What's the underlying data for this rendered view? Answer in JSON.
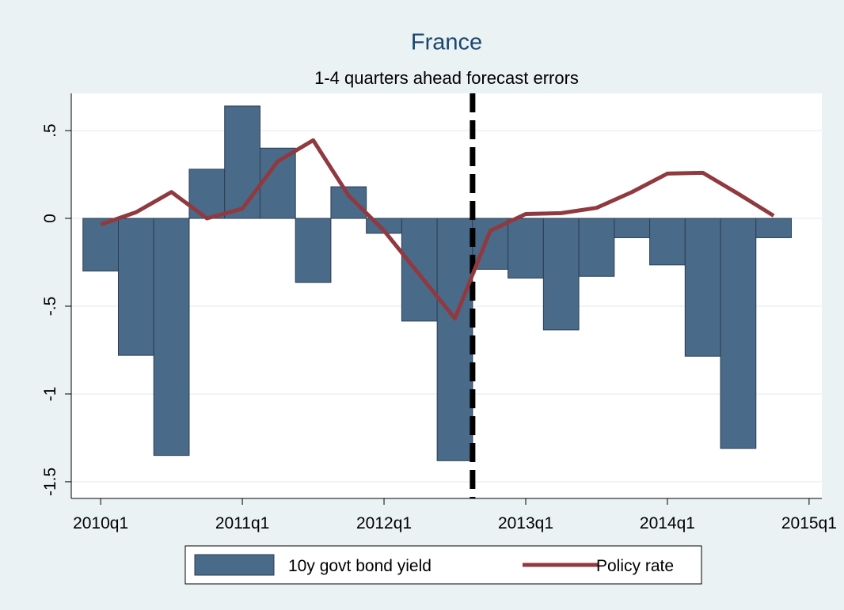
{
  "chart_data": {
    "type": "bar_line",
    "title": "France",
    "subtitle": "1-4 quarters ahead forecast errors",
    "x": [
      200,
      201,
      202,
      203,
      204,
      205,
      206,
      207,
      208,
      209,
      210,
      211,
      212,
      213,
      214,
      215,
      216,
      217,
      218,
      219
    ],
    "series": [
      {
        "name": "10y govt bond yield",
        "type": "bar",
        "color": "#4a6a8a",
        "values": [
          -0.3,
          -0.78,
          -1.35,
          0.28,
          0.64,
          0.4,
          -0.365,
          0.18,
          -0.085,
          -0.585,
          -1.38,
          -0.29,
          -0.34,
          -0.635,
          -0.33,
          -0.11,
          -0.265,
          -0.785,
          -1.31,
          -0.11
        ]
      },
      {
        "name": "Policy rate",
        "type": "line",
        "color": "#903a3f",
        "values": [
          -0.035,
          0.035,
          0.15,
          0.0,
          0.055,
          0.325,
          0.445,
          0.13,
          -0.07,
          -0.32,
          -0.57,
          -0.07,
          0.025,
          0.03,
          0.06,
          0.15,
          0.255,
          0.26,
          0.14,
          0.015
        ]
      }
    ],
    "vline": 210.5,
    "xlim": [
      199.17,
      220.36
    ],
    "xticks": [
      {
        "value": 200,
        "label": "2010q1"
      },
      {
        "value": 204,
        "label": "2011q1"
      },
      {
        "value": 208,
        "label": "2012q1"
      },
      {
        "value": 212,
        "label": "2013q1"
      },
      {
        "value": 216,
        "label": "2014q1"
      },
      {
        "value": 220,
        "label": "2015q1"
      }
    ],
    "ylim": [
      -1.595,
      0.712
    ],
    "yticks": [
      {
        "value": -1.5,
        "label": "-1.5"
      },
      {
        "value": -1,
        "label": "-1"
      },
      {
        "value": -0.5,
        "label": "-.5"
      },
      0,
      {
        "value": 0.5,
        "label": ".5"
      }
    ],
    "grid": true
  }
}
